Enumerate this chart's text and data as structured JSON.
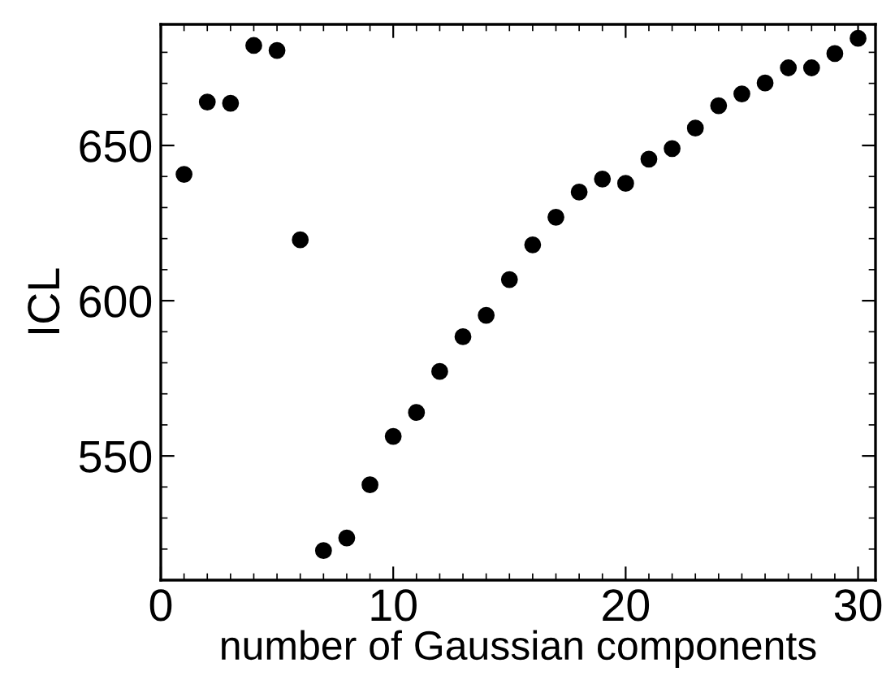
{
  "chart_data": {
    "type": "scatter",
    "xlabel": "number of Gaussian components",
    "ylabel": "ICL",
    "x": [
      1,
      2,
      3,
      4,
      5,
      6,
      7,
      8,
      9,
      10,
      11,
      12,
      13,
      14,
      15,
      16,
      17,
      18,
      19,
      20,
      21,
      22,
      23,
      24,
      25,
      26,
      27,
      28,
      29,
      30
    ],
    "series": [
      {
        "color": "#000000",
        "values": [
          640.7,
          664.0,
          663.6,
          682.2,
          680.6,
          619.6,
          519.5,
          523.6,
          540.7,
          556.3,
          564.0,
          577.2,
          588.4,
          595.3,
          606.8,
          618.0,
          626.9,
          635.0,
          639.2,
          637.8,
          645.6,
          649.0,
          655.6,
          662.8,
          666.6,
          670.1,
          675.0,
          675.0,
          679.6,
          684.5
        ]
      }
    ],
    "xlim": [
      0,
      30.75
    ],
    "ylim": [
      510,
      689
    ],
    "xticks": [
      0,
      10,
      20,
      30
    ],
    "yticks": [
      550,
      600,
      650
    ],
    "marker": "circle",
    "grid": false,
    "legend": false
  }
}
